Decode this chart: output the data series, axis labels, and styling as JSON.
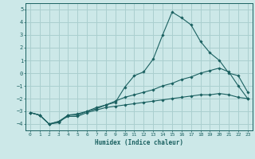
{
  "xlabel": "Humidex (Indice chaleur)",
  "ylabel": "",
  "background_color": "#cce8e8",
  "grid_color": "#aacfcf",
  "line_color": "#1a6060",
  "xlim": [
    -0.5,
    23.5
  ],
  "ylim": [
    -4.5,
    5.5
  ],
  "xticks": [
    0,
    1,
    2,
    3,
    4,
    5,
    6,
    7,
    8,
    9,
    10,
    11,
    12,
    13,
    14,
    15,
    16,
    17,
    18,
    19,
    20,
    21,
    22,
    23
  ],
  "yticks": [
    -4,
    -3,
    -2,
    -1,
    0,
    1,
    2,
    3,
    4,
    5
  ],
  "line1_x": [
    0,
    1,
    2,
    3,
    4,
    5,
    6,
    7,
    8,
    9,
    10,
    11,
    12,
    13,
    14,
    15,
    16,
    17,
    18,
    19,
    20,
    21,
    22,
    23
  ],
  "line1_y": [
    -3.1,
    -3.3,
    -4.0,
    -3.9,
    -3.3,
    -3.2,
    -3.0,
    -2.8,
    -2.5,
    -2.3,
    -1.1,
    -0.2,
    0.1,
    1.1,
    3.0,
    4.8,
    4.35,
    3.8,
    2.5,
    1.6,
    1.0,
    0.0,
    -0.2,
    -1.5
  ],
  "line2_x": [
    0,
    1,
    2,
    3,
    4,
    5,
    6,
    7,
    8,
    9,
    10,
    11,
    12,
    13,
    14,
    15,
    16,
    17,
    18,
    19,
    20,
    21,
    22,
    23
  ],
  "line2_y": [
    -3.1,
    -3.3,
    -4.0,
    -3.8,
    -3.3,
    -3.3,
    -3.0,
    -2.7,
    -2.5,
    -2.2,
    -1.9,
    -1.7,
    -1.5,
    -1.3,
    -1.0,
    -0.8,
    -0.5,
    -0.3,
    0.0,
    0.2,
    0.4,
    0.1,
    -1.0,
    -2.0
  ],
  "line3_x": [
    0,
    1,
    2,
    3,
    4,
    5,
    6,
    7,
    8,
    9,
    10,
    11,
    12,
    13,
    14,
    15,
    16,
    17,
    18,
    19,
    20,
    21,
    22,
    23
  ],
  "line3_y": [
    -3.1,
    -3.3,
    -4.0,
    -3.8,
    -3.4,
    -3.4,
    -3.1,
    -2.9,
    -2.7,
    -2.6,
    -2.5,
    -2.4,
    -2.3,
    -2.2,
    -2.1,
    -2.0,
    -1.9,
    -1.8,
    -1.7,
    -1.7,
    -1.6,
    -1.7,
    -1.9,
    -2.0
  ]
}
